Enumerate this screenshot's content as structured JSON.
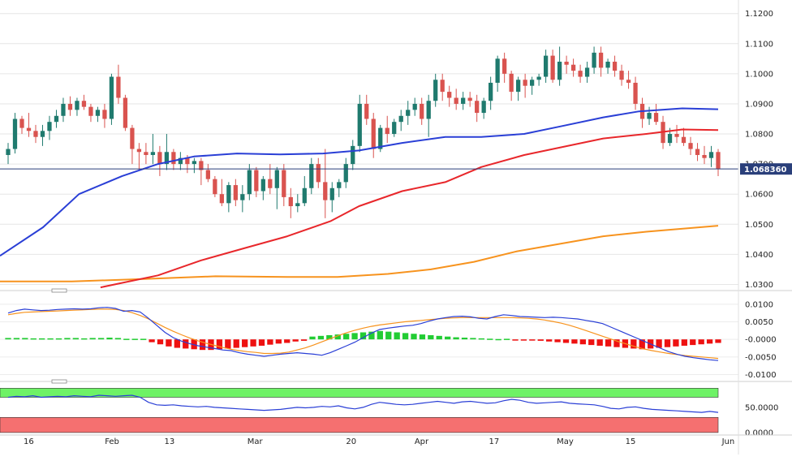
{
  "chart_data": [
    {
      "type": "candlestick",
      "panel": "price",
      "ylim": [
        1.0285,
        1.1245
      ],
      "y_ticks": [
        "1.1200",
        "1.1100",
        "1.1000",
        "1.0900",
        "1.0800",
        "1.0700",
        "1.0600",
        "1.0500",
        "1.0400",
        "1.0300"
      ],
      "last_price_label": "1.068360",
      "last_price": 1.06836,
      "colors": {
        "up": "#1f7a6e",
        "down": "#d9534f",
        "sma_fast": "#2a3fd6",
        "sma_mid": "#e8272b",
        "sma_slow": "#f7931e",
        "price_line": "#2a3f7a"
      },
      "candles": [
        [
          1.073,
          1.077,
          1.07,
          1.075
        ],
        [
          1.075,
          1.087,
          1.0735,
          1.085
        ],
        [
          1.085,
          1.086,
          1.08,
          1.082
        ],
        [
          1.082,
          1.087,
          1.079,
          1.081
        ],
        [
          1.081,
          1.083,
          1.077,
          1.079
        ],
        [
          1.079,
          1.083,
          1.076,
          1.081
        ],
        [
          1.081,
          1.086,
          1.078,
          1.084
        ],
        [
          1.084,
          1.088,
          1.082,
          1.086
        ],
        [
          1.086,
          1.092,
          1.084,
          1.09
        ],
        [
          1.09,
          1.0925,
          1.086,
          1.088
        ],
        [
          1.088,
          1.092,
          1.086,
          1.091
        ],
        [
          1.091,
          1.093,
          1.088,
          1.089
        ],
        [
          1.089,
          1.09,
          1.084,
          1.086
        ],
        [
          1.086,
          1.089,
          1.084,
          1.088
        ],
        [
          1.088,
          1.09,
          1.082,
          1.085
        ],
        [
          1.085,
          1.1,
          1.083,
          1.099
        ],
        [
          1.099,
          1.103,
          1.09,
          1.092
        ],
        [
          1.092,
          1.093,
          1.081,
          1.082
        ],
        [
          1.082,
          1.083,
          1.07,
          1.075
        ],
        [
          1.075,
          1.077,
          1.068,
          1.074
        ],
        [
          1.074,
          1.077,
          1.07,
          1.073
        ],
        [
          1.073,
          1.08,
          1.07,
          1.074
        ],
        [
          1.074,
          1.076,
          1.066,
          1.07
        ],
        [
          1.07,
          1.08,
          1.068,
          1.074
        ],
        [
          1.074,
          1.075,
          1.068,
          1.07
        ],
        [
          1.07,
          1.074,
          1.068,
          1.072
        ],
        [
          1.072,
          1.073,
          1.067,
          1.07
        ],
        [
          1.07,
          1.072,
          1.067,
          1.071
        ],
        [
          1.071,
          1.072,
          1.063,
          1.068
        ],
        [
          1.068,
          1.07,
          1.064,
          1.065
        ],
        [
          1.065,
          1.066,
          1.059,
          1.06
        ],
        [
          1.06,
          1.065,
          1.056,
          1.057
        ],
        [
          1.057,
          1.064,
          1.054,
          1.063
        ],
        [
          1.063,
          1.065,
          1.056,
          1.058
        ],
        [
          1.058,
          1.063,
          1.054,
          1.06
        ],
        [
          1.06,
          1.07,
          1.058,
          1.068
        ],
        [
          1.068,
          1.069,
          1.059,
          1.061
        ],
        [
          1.061,
          1.066,
          1.058,
          1.065
        ],
        [
          1.065,
          1.07,
          1.06,
          1.062
        ],
        [
          1.062,
          1.069,
          1.055,
          1.068
        ],
        [
          1.068,
          1.07,
          1.056,
          1.059
        ],
        [
          1.059,
          1.062,
          1.052,
          1.056
        ],
        [
          1.056,
          1.06,
          1.054,
          1.057
        ],
        [
          1.057,
          1.066,
          1.056,
          1.062
        ],
        [
          1.062,
          1.072,
          1.06,
          1.07
        ],
        [
          1.07,
          1.072,
          1.062,
          1.064
        ],
        [
          1.064,
          1.075,
          1.052,
          1.058
        ],
        [
          1.058,
          1.064,
          1.054,
          1.062
        ],
        [
          1.062,
          1.065,
          1.059,
          1.064
        ],
        [
          1.064,
          1.072,
          1.062,
          1.07
        ],
        [
          1.07,
          1.078,
          1.068,
          1.076
        ],
        [
          1.076,
          1.093,
          1.074,
          1.09
        ],
        [
          1.09,
          1.093,
          1.083,
          1.085
        ],
        [
          1.085,
          1.087,
          1.072,
          1.075
        ],
        [
          1.075,
          1.083,
          1.074,
          1.082
        ],
        [
          1.082,
          1.086,
          1.077,
          1.08
        ],
        [
          1.08,
          1.085,
          1.079,
          1.084
        ],
        [
          1.084,
          1.088,
          1.081,
          1.086
        ],
        [
          1.086,
          1.091,
          1.083,
          1.088
        ],
        [
          1.088,
          1.092,
          1.086,
          1.09
        ],
        [
          1.09,
          1.092,
          1.083,
          1.085
        ],
        [
          1.085,
          1.093,
          1.079,
          1.091
        ],
        [
          1.091,
          1.1,
          1.089,
          1.098
        ],
        [
          1.098,
          1.1,
          1.091,
          1.094
        ],
        [
          1.094,
          1.096,
          1.089,
          1.092
        ],
        [
          1.092,
          1.095,
          1.088,
          1.09
        ],
        [
          1.09,
          1.094,
          1.088,
          1.092
        ],
        [
          1.092,
          1.094,
          1.089,
          1.091
        ],
        [
          1.091,
          1.093,
          1.084,
          1.087
        ],
        [
          1.087,
          1.092,
          1.085,
          1.091
        ],
        [
          1.091,
          1.099,
          1.088,
          1.097
        ],
        [
          1.097,
          1.106,
          1.094,
          1.105
        ],
        [
          1.105,
          1.107,
          1.097,
          1.1
        ],
        [
          1.1,
          1.101,
          1.091,
          1.094
        ],
        [
          1.094,
          1.099,
          1.091,
          1.098
        ],
        [
          1.098,
          1.1,
          1.092,
          1.096
        ],
        [
          1.096,
          1.099,
          1.093,
          1.098
        ],
        [
          1.098,
          1.1,
          1.096,
          1.099
        ],
        [
          1.099,
          1.108,
          1.097,
          1.106
        ],
        [
          1.106,
          1.108,
          1.097,
          1.098
        ],
        [
          1.098,
          1.109,
          1.096,
          1.104
        ],
        [
          1.104,
          1.106,
          1.1,
          1.103
        ],
        [
          1.103,
          1.105,
          1.099,
          1.101
        ],
        [
          1.101,
          1.103,
          1.097,
          1.099
        ],
        [
          1.099,
          1.104,
          1.097,
          1.102
        ],
        [
          1.102,
          1.109,
          1.1,
          1.107
        ],
        [
          1.107,
          1.109,
          1.099,
          1.102
        ],
        [
          1.102,
          1.105,
          1.1,
          1.104
        ],
        [
          1.104,
          1.106,
          1.099,
          1.101
        ],
        [
          1.101,
          1.103,
          1.096,
          1.098
        ],
        [
          1.098,
          1.101,
          1.095,
          1.097
        ],
        [
          1.097,
          1.099,
          1.088,
          1.09
        ],
        [
          1.09,
          1.092,
          1.082,
          1.085
        ],
        [
          1.085,
          1.089,
          1.083,
          1.087
        ],
        [
          1.087,
          1.09,
          1.083,
          1.084
        ],
        [
          1.084,
          1.086,
          1.075,
          1.077
        ],
        [
          1.077,
          1.082,
          1.076,
          1.08
        ],
        [
          1.08,
          1.083,
          1.077,
          1.079
        ],
        [
          1.079,
          1.082,
          1.076,
          1.077
        ],
        [
          1.077,
          1.079,
          1.073,
          1.075
        ],
        [
          1.075,
          1.077,
          1.071,
          1.073
        ],
        [
          1.073,
          1.076,
          1.07,
          1.072
        ],
        [
          1.072,
          1.076,
          1.069,
          1.074
        ],
        [
          1.074,
          1.075,
          1.066,
          1.06836
        ]
      ],
      "sma_fast_points": [
        [
          0,
          1.0395
        ],
        [
          0.06,
          1.049
        ],
        [
          0.11,
          1.06
        ],
        [
          0.17,
          1.066
        ],
        [
          0.22,
          1.07
        ],
        [
          0.27,
          1.0725
        ],
        [
          0.33,
          1.0735
        ],
        [
          0.39,
          1.0732
        ],
        [
          0.45,
          1.0735
        ],
        [
          0.5,
          1.0745
        ],
        [
          0.56,
          1.077
        ],
        [
          0.62,
          1.079
        ],
        [
          0.67,
          1.079
        ],
        [
          0.73,
          1.08
        ],
        [
          0.78,
          1.0825
        ],
        [
          0.84,
          1.0855
        ],
        [
          0.89,
          1.0875
        ],
        [
          0.95,
          1.0885
        ],
        [
          1,
          1.0882
        ]
      ],
      "sma_mid_points": [
        [
          0.14,
          1.029
        ],
        [
          0.22,
          1.033
        ],
        [
          0.28,
          1.038
        ],
        [
          0.34,
          1.042
        ],
        [
          0.4,
          1.046
        ],
        [
          0.46,
          1.051
        ],
        [
          0.5,
          1.056
        ],
        [
          0.56,
          1.061
        ],
        [
          0.62,
          1.064
        ],
        [
          0.67,
          1.069
        ],
        [
          0.73,
          1.073
        ],
        [
          0.79,
          1.076
        ],
        [
          0.84,
          1.0785
        ],
        [
          0.9,
          1.08
        ],
        [
          0.95,
          1.0815
        ],
        [
          1,
          1.0813
        ]
      ],
      "sma_slow_points": [
        [
          0,
          1.031
        ],
        [
          0.1,
          1.031
        ],
        [
          0.2,
          1.0318
        ],
        [
          0.3,
          1.0327
        ],
        [
          0.4,
          1.0325
        ],
        [
          0.47,
          1.0325
        ],
        [
          0.54,
          1.0335
        ],
        [
          0.6,
          1.035
        ],
        [
          0.66,
          1.0375
        ],
        [
          0.72,
          1.041
        ],
        [
          0.78,
          1.0435
        ],
        [
          0.84,
          1.046
        ],
        [
          0.9,
          1.0475
        ],
        [
          1,
          1.0495
        ]
      ]
    },
    {
      "type": "macd",
      "panel": "macd",
      "ylim": [
        -0.0115,
        0.0125
      ],
      "y_ticks": [
        "0.0100",
        "0.0050",
        "-0.0000",
        "-0.0050",
        "-0.0100"
      ],
      "macd_line": [
        0.0075,
        0.0082,
        0.0086,
        0.0084,
        0.0082,
        0.0083,
        0.0085,
        0.0086,
        0.0087,
        0.0086,
        0.0087,
        0.009,
        0.0091,
        0.0088,
        0.008,
        0.0082,
        0.0078,
        0.006,
        0.004,
        0.002,
        0.0005,
        -0.0005,
        -0.0012,
        -0.0018,
        -0.0022,
        -0.0026,
        -0.003,
        -0.0032,
        -0.0038,
        -0.0042,
        -0.0045,
        -0.0048,
        -0.0045,
        -0.0042,
        -0.004,
        -0.0038,
        -0.004,
        -0.0042,
        -0.0045,
        -0.0038,
        -0.0028,
        -0.0018,
        -0.0008,
        0.0005,
        0.0018,
        0.0028,
        0.0032,
        0.0035,
        0.0038,
        0.004,
        0.0045,
        0.0052,
        0.0058,
        0.0062,
        0.0065,
        0.0066,
        0.0064,
        0.006,
        0.0058,
        0.0065,
        0.007,
        0.0068,
        0.0065,
        0.0064,
        0.0063,
        0.0062,
        0.0063,
        0.0062,
        0.006,
        0.0058,
        0.0054,
        0.005,
        0.0045,
        0.0035,
        0.0025,
        0.0015,
        0.0005,
        -0.0005,
        -0.0015,
        -0.0025,
        -0.0035,
        -0.0042,
        -0.0048,
        -0.0052,
        -0.0055,
        -0.0058,
        -0.006
      ],
      "signal_line": [
        0.007,
        0.0074,
        0.0077,
        0.0078,
        0.0079,
        0.008,
        0.0081,
        0.0082,
        0.0083,
        0.0084,
        0.0085,
        0.0086,
        0.0086,
        0.0085,
        0.0082,
        0.0076,
        0.0068,
        0.0058,
        0.0046,
        0.0034,
        0.0023,
        0.0013,
        0.0004,
        -0.0004,
        -0.0011,
        -0.0017,
        -0.0023,
        -0.0028,
        -0.0032,
        -0.0035,
        -0.0037,
        -0.004,
        -0.004,
        -0.0039,
        -0.0036,
        -0.003,
        -0.0024,
        -0.0016,
        -0.0007,
        0.0002,
        0.0011,
        0.0019,
        0.0026,
        0.0032,
        0.0037,
        0.0041,
        0.0044,
        0.0047,
        0.005,
        0.0052,
        0.0054,
        0.0056,
        0.0058,
        0.006,
        0.0061,
        0.0062,
        0.0062,
        0.0062,
        0.0062,
        0.0062,
        0.0062,
        0.0062,
        0.0061,
        0.006,
        0.0058,
        0.0055,
        0.0051,
        0.0046,
        0.004,
        0.0033,
        0.0025,
        0.0017,
        0.0009,
        0.0001,
        -0.0007,
        -0.0014,
        -0.0021,
        -0.0027,
        -0.0032,
        -0.0036,
        -0.004,
        -0.0043,
        -0.0046,
        -0.0048,
        -0.005,
        -0.0052,
        -0.0054
      ],
      "histogram": [
        0.0004,
        0.0004,
        0.0004,
        0.0003,
        0.0003,
        0.0003,
        0.0003,
        0.0004,
        0.0004,
        0.0003,
        0.0004,
        0.0004,
        0.0005,
        0.0004,
        0.0,
        0.0,
        0.0,
        -0.0008,
        -0.0014,
        -0.002,
        -0.0024,
        -0.0026,
        -0.0028,
        -0.003,
        -0.003,
        -0.0028,
        -0.0026,
        -0.0024,
        -0.0022,
        -0.002,
        -0.0018,
        -0.0015,
        -0.0012,
        -0.001,
        -0.0006,
        -0.0004,
        0.0008,
        0.001,
        0.0012,
        0.0014,
        0.0016,
        0.0018,
        0.002,
        0.0022,
        0.0024,
        0.0022,
        0.002,
        0.0018,
        0.0016,
        0.0014,
        0.0012,
        0.001,
        0.0008,
        0.0006,
        0.0005,
        0.0004,
        0.0003,
        0.0002,
        0.0001,
        0.0,
        -0.0001,
        -0.0002,
        -0.0003,
        -0.0004,
        -0.0006,
        -0.0008,
        -0.001,
        -0.0012,
        -0.0014,
        -0.0016,
        -0.0018,
        -0.002,
        -0.0022,
        -0.0024,
        -0.0026,
        -0.0028,
        -0.0026,
        -0.0024,
        -0.0022,
        -0.002,
        -0.0018,
        -0.0016,
        -0.0014,
        -0.0012,
        -0.001
      ],
      "colors": {
        "macd": "#2a3fd6",
        "signal": "#f7931e",
        "hist_up": "#22cc33",
        "hist_down": "#ee1111"
      }
    },
    {
      "type": "line",
      "panel": "rsi",
      "ylim": [
        -5,
        95
      ],
      "y_ticks": [
        "50.0000",
        "0.0000"
      ],
      "overbought_band": [
        70,
        88
      ],
      "oversold_band": [
        0,
        30
      ],
      "values": [
        70,
        72,
        71,
        73,
        70,
        71,
        72,
        71,
        73,
        72,
        71,
        74,
        73,
        72,
        73,
        74,
        70,
        60,
        55,
        54,
        55,
        53,
        52,
        51,
        52,
        50,
        49,
        48,
        47,
        46,
        45,
        44,
        45,
        46,
        48,
        50,
        49,
        50,
        52,
        51,
        53,
        49,
        47,
        50,
        56,
        60,
        58,
        56,
        55,
        56,
        58,
        60,
        62,
        60,
        58,
        61,
        62,
        60,
        58,
        59,
        63,
        66,
        64,
        60,
        58,
        59,
        60,
        61,
        58,
        57,
        56,
        55,
        52,
        48,
        47,
        50,
        51,
        48,
        46,
        45,
        44,
        43,
        42,
        41,
        40,
        42,
        40
      ],
      "colors": {
        "line": "#2a3fd6",
        "ob": "#6ef266",
        "os": "#f57070"
      }
    }
  ],
  "x_axis": {
    "labels": [
      {
        "text": "16",
        "pos": 0.04
      },
      {
        "text": "Feb",
        "pos": 0.156
      },
      {
        "text": "13",
        "pos": 0.236
      },
      {
        "text": "Mar",
        "pos": 0.355
      },
      {
        "text": "20",
        "pos": 0.489
      },
      {
        "text": "Apr",
        "pos": 0.587
      },
      {
        "text": "17",
        "pos": 0.688
      },
      {
        "text": "May",
        "pos": 0.787
      },
      {
        "text": "15",
        "pos": 0.878
      },
      {
        "text": "Jun",
        "pos": 1.014
      }
    ]
  }
}
